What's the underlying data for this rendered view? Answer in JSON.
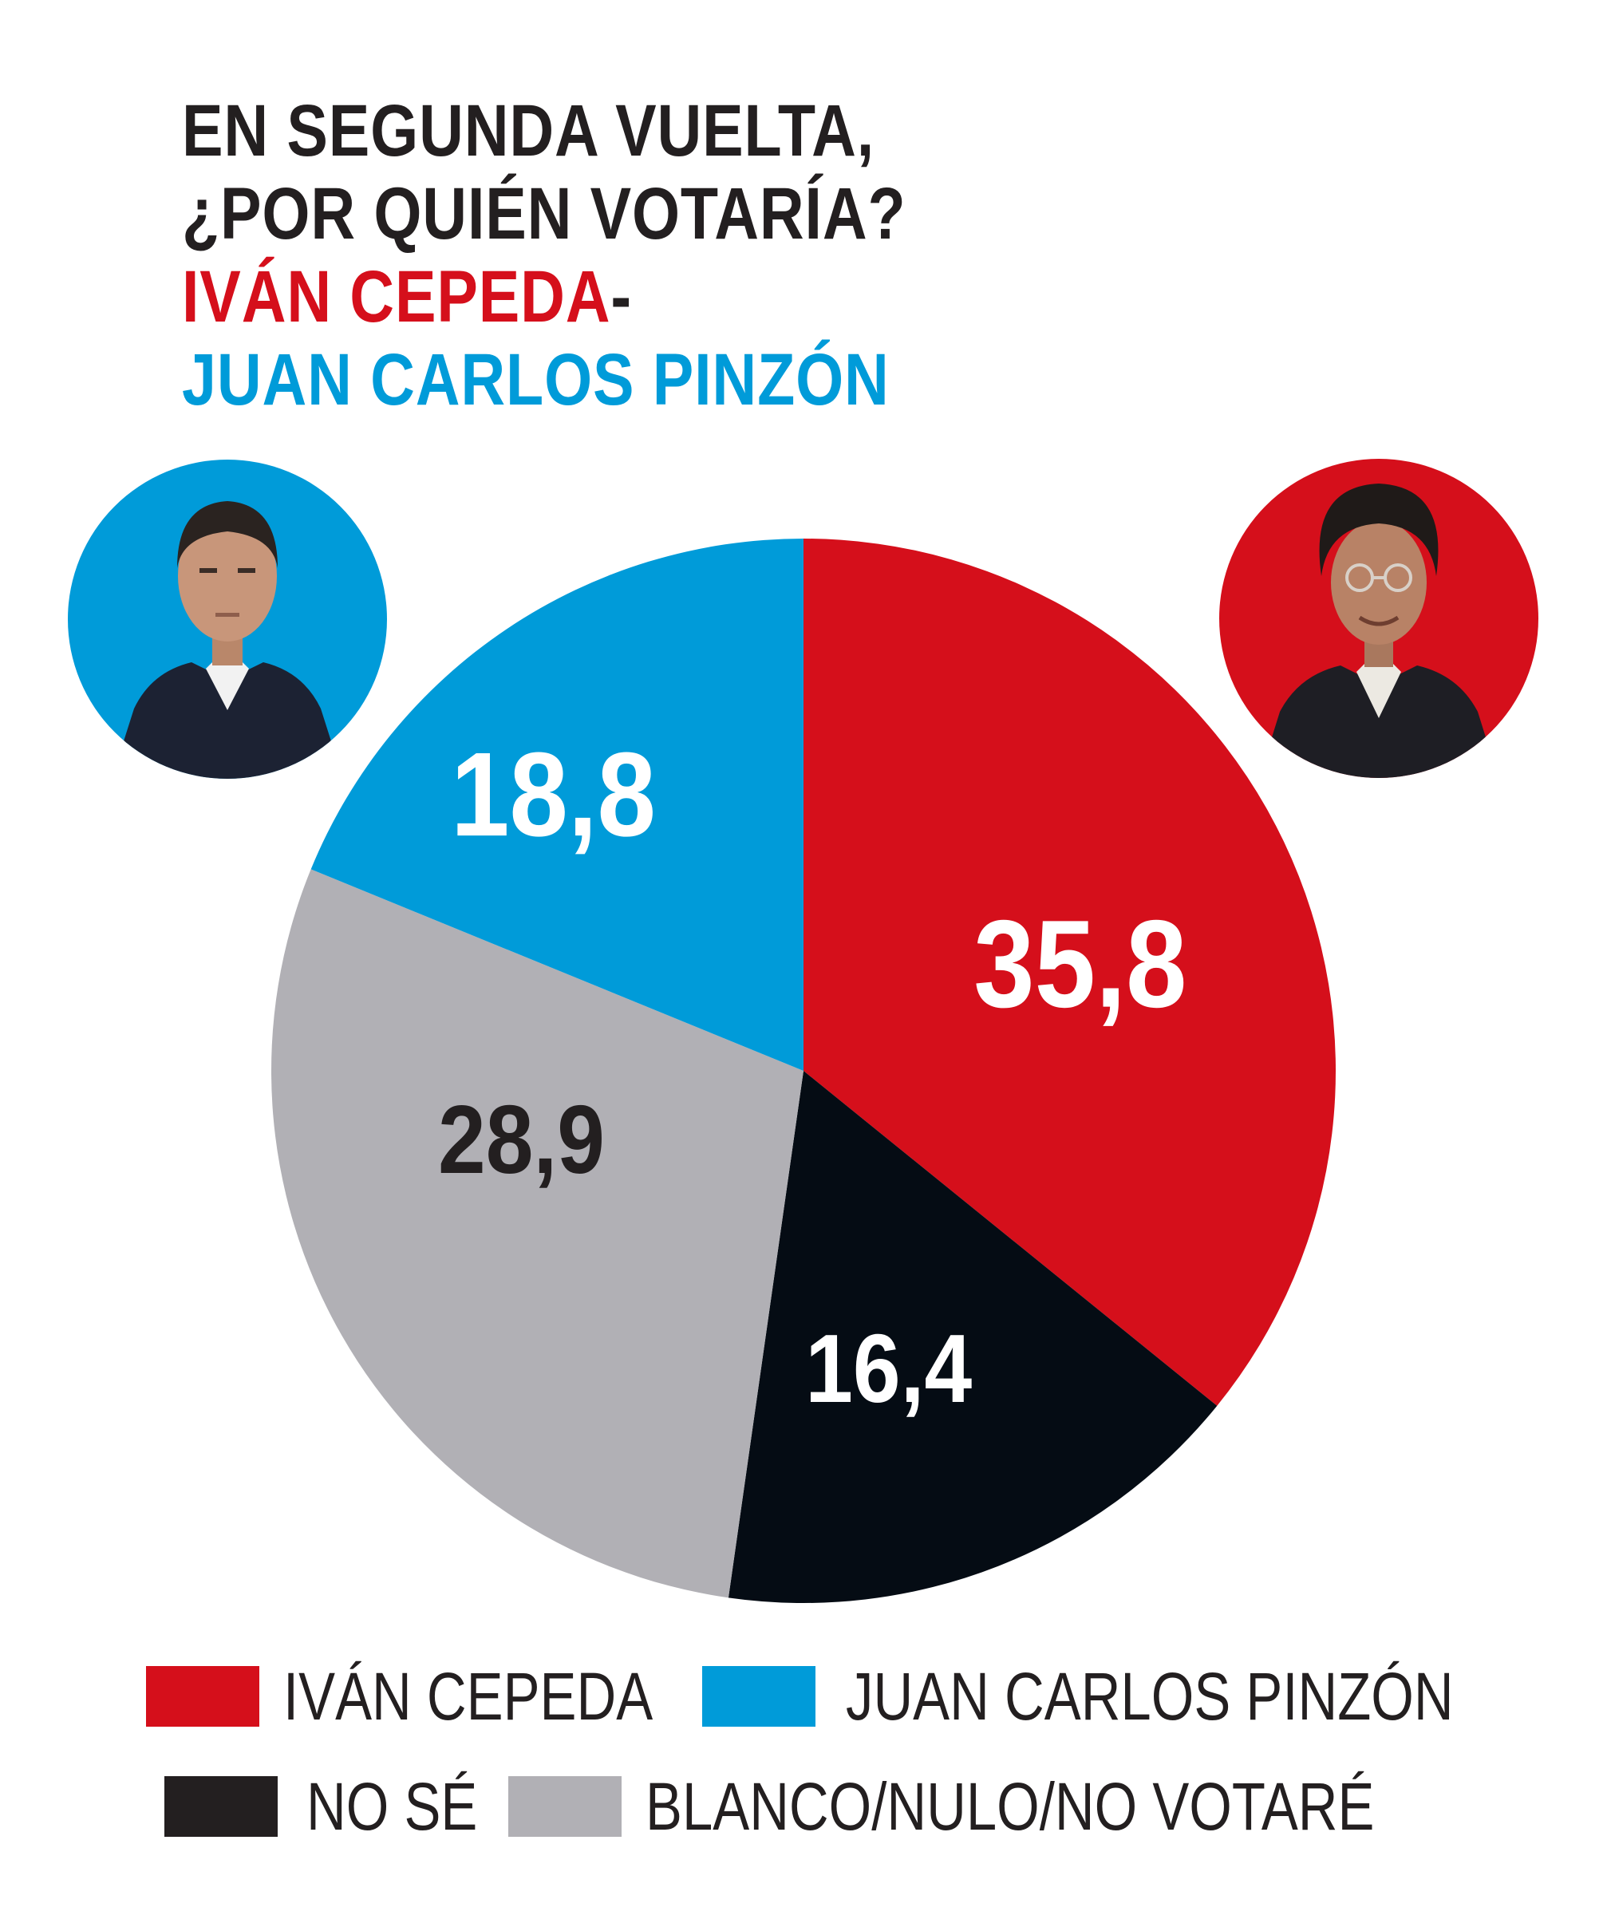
{
  "title": {
    "line1": "EN SEGUNDA VUELTA,",
    "line2": "¿POR QUIÉN VOTARÍA?",
    "line3_name": "IVÁN CEPEDA",
    "line3_sep": "-",
    "line4_name": "JUAN CARLOS PINZÓN"
  },
  "colors": {
    "red": "#d50f1b",
    "blue": "#009bd9",
    "black": "#050c14",
    "gray": "#b1b0b5",
    "dark_text": "#231f20"
  },
  "chart_data": {
    "type": "pie",
    "title": "EN SEGUNDA VUELTA, ¿POR QUIÉN VOTARÍA? IVÁN CEPEDA-JUAN CARLOS PINZÓN",
    "slices": [
      {
        "name": "IVÁN CEPEDA",
        "value": 35.8,
        "label": "35,8",
        "color": "#d50f1b",
        "label_color": "#ffffff"
      },
      {
        "name": "NO SÉ",
        "value": 16.4,
        "label": "16,4",
        "color": "#050c14",
        "label_color": "#ffffff"
      },
      {
        "name": "BLANCO/NULO/NO VOTARÉ",
        "value": 28.9,
        "label": "28,9",
        "color": "#b1b0b5",
        "label_color": "#231f20"
      },
      {
        "name": "JUAN CARLOS PINZÓN",
        "value": 18.8,
        "label": "18,8",
        "color": "#009bd9",
        "label_color": "#ffffff"
      }
    ],
    "start": "12 o'clock",
    "direction": "clockwise",
    "legend_position": "bottom"
  },
  "legend": [
    {
      "label": "IVÁN CEPEDA",
      "color": "#d50f1b"
    },
    {
      "label": "JUAN CARLOS PINZÓN",
      "color": "#009bd9"
    },
    {
      "label": "NO SÉ",
      "color": "#231f20"
    },
    {
      "label": "BLANCO/NULO/NO VOTARÉ",
      "color": "#b1b0b5"
    }
  ],
  "portraits": [
    {
      "name": "JUAN CARLOS PINZÓN",
      "bg_color": "#009bd9"
    },
    {
      "name": "IVÁN CEPEDA",
      "bg_color": "#d50f1b"
    }
  ]
}
